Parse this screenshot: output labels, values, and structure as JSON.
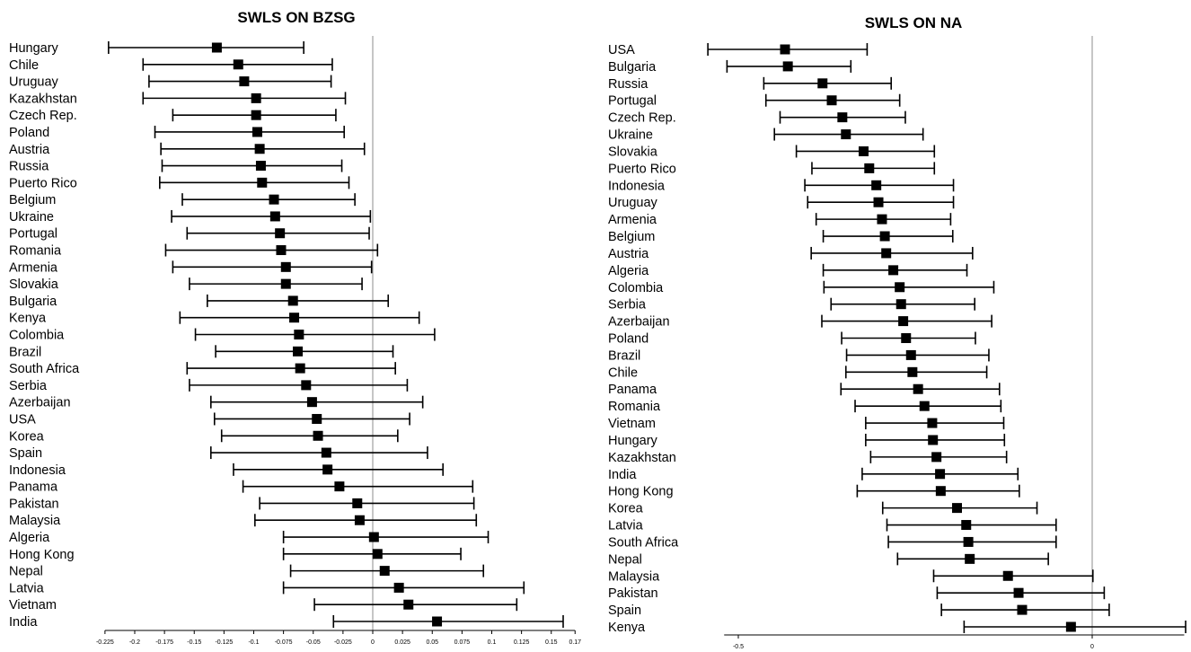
{
  "chart_data": [
    {
      "type": "forest",
      "title": "SWLS ON BZSG",
      "xlim": [
        -0.225,
        0.17
      ],
      "xticks": [
        -0.225,
        -0.2,
        -0.175,
        -0.15,
        -0.125,
        -0.1,
        -0.075,
        -0.05,
        -0.025,
        0,
        0.025,
        0.05,
        0.075,
        0.1,
        0.125,
        0.15,
        0.17
      ],
      "xtick_labels": [
        "-0.225",
        "-0.2",
        "-0.175",
        "-0.15",
        "-0.125",
        "-0.1",
        "-0.075",
        "-0.05",
        "-0.025",
        "0",
        "0.025",
        "0.05",
        "0.075",
        "0.1",
        "0.125",
        "0.15",
        "0.17"
      ],
      "reference_line": 0,
      "categories": [
        "Hungary",
        "Chile",
        "Uruguay",
        "Kazakhstan",
        "Czech Rep.",
        "Poland",
        "Austria",
        "Russia",
        "Puerto Rico",
        "Belgium",
        "Ukraine",
        "Portugal",
        "Romania",
        "Armenia",
        "Slovakia",
        "Bulgaria",
        "Kenya",
        "Colombia",
        "Brazil",
        "South Africa",
        "Serbia",
        "Azerbaijan",
        "USA",
        "Korea",
        "Spain",
        "Indonesia",
        "Panama",
        "Pakistan",
        "Malaysia",
        "Algeria",
        "Hong Kong",
        "Nepal",
        "Latvia",
        "Vietnam",
        "India"
      ],
      "estimate": [
        -0.131,
        -0.113,
        -0.108,
        -0.098,
        -0.098,
        -0.097,
        -0.095,
        -0.094,
        -0.093,
        -0.083,
        -0.082,
        -0.078,
        -0.077,
        -0.073,
        -0.073,
        -0.067,
        -0.066,
        -0.062,
        -0.063,
        -0.061,
        -0.056,
        -0.051,
        -0.047,
        -0.046,
        -0.039,
        -0.038,
        -0.028,
        -0.013,
        -0.011,
        0.001,
        0.004,
        0.01,
        0.022,
        0.03,
        0.054
      ],
      "lower": [
        -0.222,
        -0.193,
        -0.188,
        -0.193,
        -0.168,
        -0.183,
        -0.178,
        -0.177,
        -0.179,
        -0.16,
        -0.169,
        -0.156,
        -0.174,
        -0.168,
        -0.154,
        -0.139,
        -0.162,
        -0.149,
        -0.132,
        -0.156,
        -0.154,
        -0.136,
        -0.133,
        -0.127,
        -0.136,
        -0.117,
        -0.109,
        -0.095,
        -0.099,
        -0.075,
        -0.075,
        -0.069,
        -0.075,
        -0.049,
        -0.033
      ],
      "upper": [
        -0.058,
        -0.034,
        -0.035,
        -0.023,
        -0.031,
        -0.024,
        -0.007,
        -0.026,
        -0.02,
        -0.015,
        -0.002,
        -0.003,
        0.004,
        -0.001,
        -0.009,
        0.013,
        0.039,
        0.052,
        0.017,
        0.019,
        0.029,
        0.042,
        0.031,
        0.021,
        0.046,
        0.059,
        0.084,
        0.085,
        0.087,
        0.097,
        0.074,
        0.093,
        0.127,
        0.121,
        0.16
      ]
    },
    {
      "type": "forest",
      "title": "SWLS ON NA",
      "xlim": [
        -0.52,
        0.13
      ],
      "xticks": [
        -0.5,
        0
      ],
      "xtick_labels": [
        "-0.5",
        "0"
      ],
      "reference_line": 0,
      "categories": [
        "USA",
        "Bulgaria",
        "Russia",
        "Portugal",
        "Czech Rep.",
        "Ukraine",
        "Slovakia",
        "Puerto Rico",
        "Indonesia",
        "Uruguay",
        "Armenia",
        "Belgium",
        "Austria",
        "Algeria",
        "Colombia",
        "Serbia",
        "Azerbaijan",
        "Poland",
        "Brazil",
        "Chile",
        "Panama",
        "Romania",
        "Vietnam",
        "Hungary",
        "Kazakhstan",
        "India",
        "Hong Kong",
        "Korea",
        "Latvia",
        "South Africa",
        "Nepal",
        "Malaysia",
        "Pakistan",
        "Spain",
        "Kenya"
      ],
      "estimate": [
        -0.434,
        -0.43,
        -0.381,
        -0.368,
        -0.353,
        -0.348,
        -0.323,
        -0.315,
        -0.305,
        -0.302,
        -0.297,
        -0.293,
        -0.291,
        -0.281,
        -0.272,
        -0.27,
        -0.267,
        -0.263,
        -0.256,
        -0.254,
        -0.246,
        -0.237,
        -0.226,
        -0.225,
        -0.22,
        -0.215,
        -0.214,
        -0.191,
        -0.178,
        -0.175,
        -0.173,
        -0.119,
        -0.104,
        -0.099,
        -0.03
      ],
      "lower": [
        -0.543,
        -0.516,
        -0.464,
        -0.461,
        -0.441,
        -0.449,
        -0.418,
        -0.396,
        -0.406,
        -0.402,
        -0.39,
        -0.38,
        -0.397,
        -0.38,
        -0.379,
        -0.369,
        -0.382,
        -0.354,
        -0.347,
        -0.348,
        -0.355,
        -0.335,
        -0.32,
        -0.32,
        -0.313,
        -0.325,
        -0.332,
        -0.296,
        -0.29,
        -0.288,
        -0.275,
        -0.224,
        -0.219,
        -0.213,
        -0.181
      ],
      "upper": [
        -0.318,
        -0.341,
        -0.284,
        -0.272,
        -0.264,
        -0.239,
        -0.223,
        -0.223,
        -0.196,
        -0.196,
        -0.2,
        -0.197,
        -0.169,
        -0.177,
        -0.139,
        -0.166,
        -0.142,
        -0.165,
        -0.146,
        -0.149,
        -0.131,
        -0.129,
        -0.125,
        -0.124,
        -0.121,
        -0.105,
        -0.103,
        -0.078,
        -0.051,
        -0.051,
        -0.062,
        0.001,
        0.017,
        0.024,
        0.132
      ]
    }
  ]
}
